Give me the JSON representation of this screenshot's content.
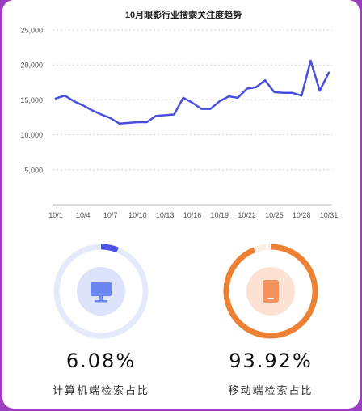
{
  "chart_data": {
    "type": "line",
    "title": "10月眼影行业搜索关注度趋势",
    "x": [
      "10/1",
      "10/2",
      "10/3",
      "10/4",
      "10/5",
      "10/6",
      "10/7",
      "10/8",
      "10/9",
      "10/10",
      "10/11",
      "10/12",
      "10/13",
      "10/14",
      "10/15",
      "10/16",
      "10/17",
      "10/18",
      "10/19",
      "10/20",
      "10/21",
      "10/22",
      "10/23",
      "10/24",
      "10/25",
      "10/26",
      "10/27",
      "10/28",
      "10/29",
      "10/30",
      "10/31"
    ],
    "x_tick_labels": [
      "10/1",
      "10/4",
      "10/7",
      "10/10",
      "10/13",
      "10/16",
      "10/19",
      "10/22",
      "10/25",
      "10/28",
      "10/31"
    ],
    "series": [
      {
        "values": [
          15200,
          15600,
          14800,
          14200,
          13500,
          12900,
          12400,
          11600,
          11700,
          11800,
          11800,
          12700,
          12800,
          12900,
          15300,
          14600,
          13700,
          13700,
          14800,
          15500,
          15300,
          16600,
          16800,
          17800,
          16100,
          16000,
          16000,
          15600,
          20600,
          16300,
          18900
        ]
      }
    ],
    "ylim": [
      0,
      25000
    ],
    "y_ticks": [
      "5,000",
      "10,000",
      "15,000",
      "20,000",
      "25,000"
    ],
    "grid": true,
    "line_color": "#4a4fdb"
  },
  "stats": {
    "pc": {
      "percent": "6.08%",
      "fraction": 0.0608,
      "label": "计算机端检索占比",
      "icon": "monitor-icon",
      "color": "#4a53e6",
      "track": "#e4e9fb",
      "icon_bg": "#dde3fb",
      "icon_color": "#6a86f0"
    },
    "mobile": {
      "percent": "93.92%",
      "fraction": 0.9392,
      "label": "移动端检索占比",
      "icon": "tablet-icon",
      "color": "#ed8133",
      "track": "#fbeee2",
      "icon_bg": "#fde2d3",
      "icon_color": "#f3925c"
    }
  }
}
